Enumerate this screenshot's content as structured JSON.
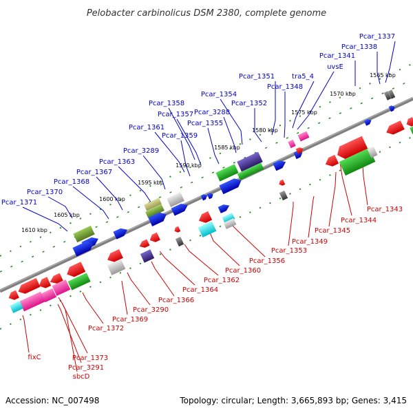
{
  "title": "Pelobacter carbinolicus DSM 2380, complete genome",
  "footer": {
    "accession": "Accession: NC_007498",
    "summary": "Topology: circular; Length: 3,665,893 bp; Genes: 3,415"
  },
  "colors": {
    "label_top": "#0000cc",
    "label_bottom": "#cc0000",
    "backbone": "#808080",
    "tick_dots": "#228B22"
  },
  "ticks": [
    "1565 kbp",
    "1570 kbp",
    "1575 kbp",
    "1580 kbp",
    "1585 kbp",
    "1590 kbp",
    "1595 kbp",
    "1600 kbp",
    "1605 kbp",
    "1610 kbp"
  ],
  "top_labels": [
    "Pcar_1337",
    "Pcar_1338",
    "Pcar_1341",
    "uvsE",
    "tra5_4",
    "Pcar_1351",
    "Pcar_1348",
    "Pcar_1354",
    "Pcar_1352",
    "Pcar_3288",
    "Pcar_1358",
    "Pcar_1357",
    "Pcar_1355",
    "Pcar_1361",
    "Pcar_1359",
    "Pcar_3289",
    "Pcar_1363",
    "Pcar_1367",
    "Pcar_1368",
    "Pcar_1370",
    "Pcar_1371"
  ],
  "bottom_labels": [
    "Pcar_1343",
    "Pcar_1344",
    "Pcar_1345",
    "Pcar_1349",
    "Pcar_1353",
    "Pcar_1356",
    "Pcar_1360",
    "Pcar_1362",
    "Pcar_1364",
    "Pcar_1366",
    "Pcar_3290",
    "Pcar_1369",
    "Pcar_1372",
    "fixC",
    "Pcar_1373",
    "Pcar_3291",
    "sbcD"
  ]
}
